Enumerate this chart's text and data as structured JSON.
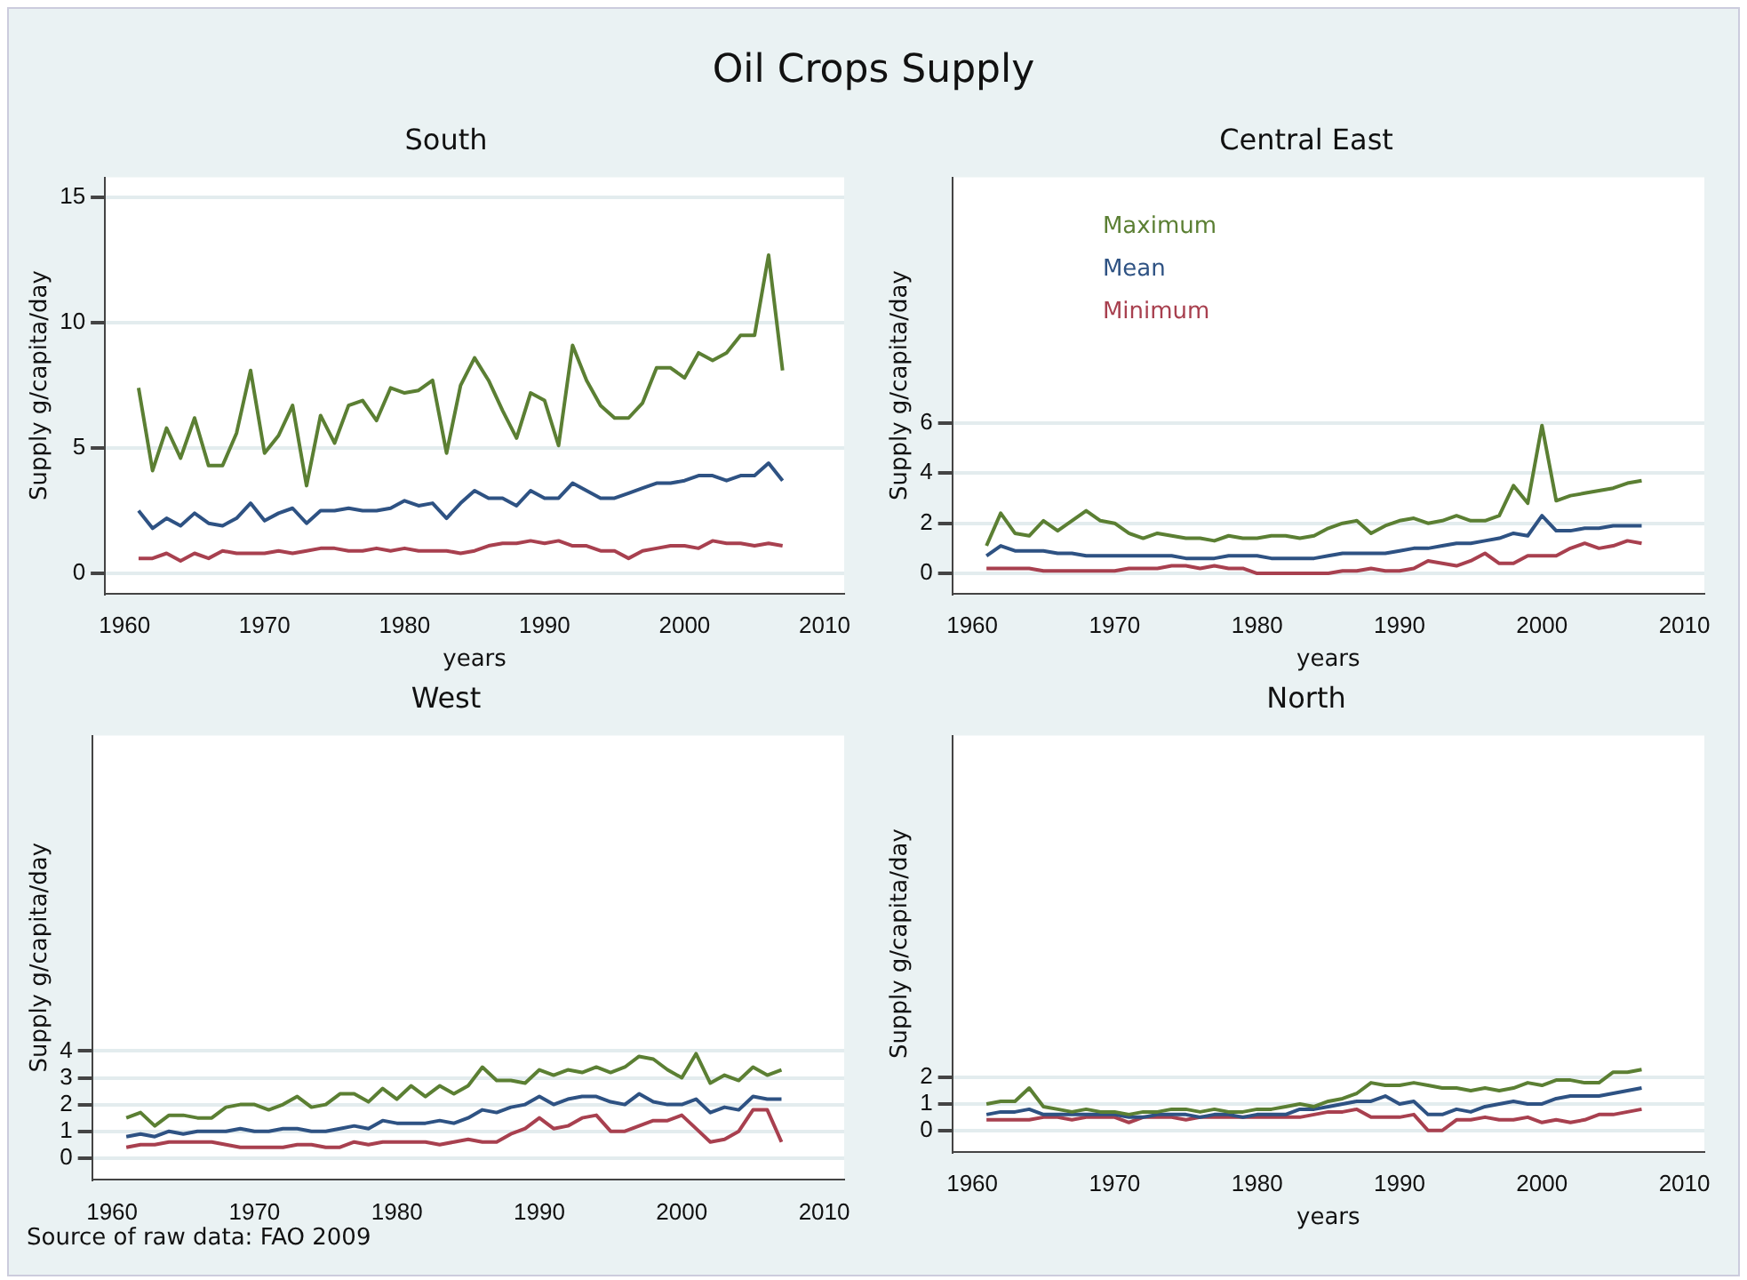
{
  "chart_data": [
    {
      "type": "line",
      "title": "South",
      "annotations": [
        "Oil Crops Supply"
      ],
      "xlabel": "years",
      "ylabel": "Supply g/capita/day",
      "x": [
        1961,
        1962,
        1963,
        1964,
        1965,
        1966,
        1967,
        1968,
        1969,
        1970,
        1971,
        1972,
        1973,
        1974,
        1975,
        1976,
        1977,
        1978,
        1979,
        1980,
        1981,
        1982,
        1983,
        1984,
        1985,
        1986,
        1987,
        1988,
        1989,
        1990,
        1991,
        1992,
        1993,
        1994,
        1995,
        1996,
        1997,
        1998,
        1999,
        2000,
        2001,
        2002,
        2003,
        2004,
        2005,
        2006,
        2007
      ],
      "xlim": [
        1958.6,
        2011.4
      ],
      "xticks": [
        1960,
        1970,
        1980,
        1990,
        2000,
        2010
      ],
      "ylim": [
        -0.8,
        15.8
      ],
      "yticks": [
        0,
        5,
        10,
        15
      ],
      "grid": "y",
      "legend": false,
      "marker": "none",
      "line_style": "solid",
      "series": [
        {
          "color": "#5b7f33",
          "values": [
            7.4,
            4.1,
            5.8,
            4.6,
            6.2,
            4.3,
            4.3,
            5.6,
            8.1,
            4.8,
            5.5,
            6.7,
            3.5,
            6.3,
            5.2,
            6.7,
            6.9,
            6.1,
            7.4,
            7.2,
            7.3,
            7.7,
            4.8,
            7.5,
            8.6,
            7.7,
            6.5,
            5.4,
            7.2,
            6.9,
            5.1,
            9.1,
            7.7,
            6.7,
            6.2,
            6.2,
            6.8,
            8.2,
            8.2,
            7.8,
            8.8,
            8.5,
            8.8,
            9.5,
            9.5,
            12.7,
            8.1
          ]
        },
        {
          "color": "#2e5283",
          "values": [
            2.5,
            1.8,
            2.2,
            1.9,
            2.4,
            2.0,
            1.9,
            2.2,
            2.8,
            2.1,
            2.4,
            2.6,
            2.0,
            2.5,
            2.5,
            2.6,
            2.5,
            2.5,
            2.6,
            2.9,
            2.7,
            2.8,
            2.2,
            2.8,
            3.3,
            3.0,
            3.0,
            2.7,
            3.3,
            3.0,
            3.0,
            3.6,
            3.3,
            3.0,
            3.0,
            3.2,
            3.4,
            3.6,
            3.6,
            3.7,
            3.9,
            3.9,
            3.7,
            3.9,
            3.9,
            4.4,
            3.7
          ]
        },
        {
          "color": "#a8404f",
          "values": [
            0.6,
            0.6,
            0.8,
            0.5,
            0.8,
            0.6,
            0.9,
            0.8,
            0.8,
            0.8,
            0.9,
            0.8,
            0.9,
            1.0,
            1.0,
            0.9,
            0.9,
            1.0,
            0.9,
            1.0,
            0.9,
            0.9,
            0.9,
            0.8,
            0.9,
            1.1,
            1.2,
            1.2,
            1.3,
            1.2,
            1.3,
            1.1,
            1.1,
            0.9,
            0.9,
            0.6,
            0.9,
            1.0,
            1.1,
            1.1,
            1.0,
            1.3,
            1.2,
            1.2,
            1.1,
            1.2,
            1.1
          ]
        }
      ]
    },
    {
      "type": "line",
      "title": "Central East",
      "xlabel": "years",
      "ylabel": "Supply g/capita/day",
      "x": [
        1961,
        1962,
        1963,
        1964,
        1965,
        1966,
        1967,
        1968,
        1969,
        1970,
        1971,
        1972,
        1973,
        1974,
        1975,
        1976,
        1977,
        1978,
        1979,
        1980,
        1981,
        1982,
        1983,
        1984,
        1985,
        1986,
        1987,
        1988,
        1989,
        1990,
        1991,
        1992,
        1993,
        1994,
        1995,
        1996,
        1997,
        1998,
        1999,
        2000,
        2001,
        2002,
        2003,
        2004,
        2005,
        2006,
        2007
      ],
      "xlim": [
        1958.6,
        2011.4
      ],
      "xticks": [
        1960,
        1970,
        1980,
        1990,
        2000,
        2010
      ],
      "ylim": [
        -0.8,
        15.8
      ],
      "yticks": [
        0,
        2,
        4,
        6
      ],
      "grid": "y",
      "legend": "top left",
      "marker": "none",
      "line_style": "solid",
      "series": [
        {
          "name": "Maximum",
          "color": "#5b7f33",
          "values": [
            1.1,
            2.4,
            1.6,
            1.5,
            2.1,
            1.7,
            2.1,
            2.5,
            2.1,
            2.0,
            1.6,
            1.4,
            1.6,
            1.5,
            1.4,
            1.4,
            1.3,
            1.5,
            1.4,
            1.4,
            1.5,
            1.5,
            1.4,
            1.5,
            1.8,
            2.0,
            2.1,
            1.6,
            1.9,
            2.1,
            2.2,
            2.0,
            2.1,
            2.3,
            2.1,
            2.1,
            2.3,
            3.5,
            2.8,
            5.9,
            2.9,
            3.1,
            3.2,
            3.3,
            3.4,
            3.6,
            3.7
          ]
        },
        {
          "name": "Mean",
          "color": "#2e5283",
          "values": [
            0.7,
            1.1,
            0.9,
            0.9,
            0.9,
            0.8,
            0.8,
            0.7,
            0.7,
            0.7,
            0.7,
            0.7,
            0.7,
            0.7,
            0.6,
            0.6,
            0.6,
            0.7,
            0.7,
            0.7,
            0.6,
            0.6,
            0.6,
            0.6,
            0.7,
            0.8,
            0.8,
            0.8,
            0.8,
            0.9,
            1.0,
            1.0,
            1.1,
            1.2,
            1.2,
            1.3,
            1.4,
            1.6,
            1.5,
            2.3,
            1.7,
            1.7,
            1.8,
            1.8,
            1.9,
            1.9,
            1.9
          ]
        },
        {
          "name": "Minimum",
          "color": "#a8404f",
          "values": [
            0.2,
            0.2,
            0.2,
            0.2,
            0.1,
            0.1,
            0.1,
            0.1,
            0.1,
            0.1,
            0.2,
            0.2,
            0.2,
            0.3,
            0.3,
            0.2,
            0.3,
            0.2,
            0.2,
            0.0,
            0.0,
            0.0,
            0.0,
            0.0,
            0.0,
            0.1,
            0.1,
            0.2,
            0.1,
            0.1,
            0.2,
            0.5,
            0.4,
            0.3,
            0.5,
            0.8,
            0.4,
            0.4,
            0.7,
            0.7,
            0.7,
            1.0,
            1.2,
            1.0,
            1.1,
            1.3,
            1.2
          ]
        }
      ]
    },
    {
      "type": "line",
      "title": "West",
      "annotations": [
        "Source of raw data: FAO 2009"
      ],
      "ylabel": "Supply g/capita/day",
      "x": [
        1961,
        1962,
        1963,
        1964,
        1965,
        1966,
        1967,
        1968,
        1969,
        1970,
        1971,
        1972,
        1973,
        1974,
        1975,
        1976,
        1977,
        1978,
        1979,
        1980,
        1981,
        1982,
        1983,
        1984,
        1985,
        1986,
        1987,
        1988,
        1989,
        1990,
        1991,
        1992,
        1993,
        1994,
        1995,
        1996,
        1997,
        1998,
        1999,
        2000,
        2001,
        2002,
        2003,
        2004,
        2005,
        2006,
        2007
      ],
      "xlim": [
        1958.6,
        2011.4
      ],
      "xticks": [
        1960,
        1970,
        1980,
        1990,
        2000,
        2010
      ],
      "ylim": [
        -0.8,
        15.8
      ],
      "yticks": [
        0,
        1,
        2,
        3,
        4
      ],
      "grid": "y",
      "legend": false,
      "marker": "none",
      "line_style": "solid",
      "series": [
        {
          "color": "#5b7f33",
          "values": [
            1.5,
            1.7,
            1.2,
            1.6,
            1.6,
            1.5,
            1.5,
            1.9,
            2.0,
            2.0,
            1.8,
            2.0,
            2.3,
            1.9,
            2.0,
            2.4,
            2.4,
            2.1,
            2.6,
            2.2,
            2.7,
            2.3,
            2.7,
            2.4,
            2.7,
            3.4,
            2.9,
            2.9,
            2.8,
            3.3,
            3.1,
            3.3,
            3.2,
            3.4,
            3.2,
            3.4,
            3.8,
            3.7,
            3.3,
            3.0,
            3.9,
            2.8,
            3.1,
            2.9,
            3.4,
            3.1,
            3.3
          ]
        },
        {
          "color": "#2e5283",
          "values": [
            0.8,
            0.9,
            0.8,
            1.0,
            0.9,
            1.0,
            1.0,
            1.0,
            1.1,
            1.0,
            1.0,
            1.1,
            1.1,
            1.0,
            1.0,
            1.1,
            1.2,
            1.1,
            1.4,
            1.3,
            1.3,
            1.3,
            1.4,
            1.3,
            1.5,
            1.8,
            1.7,
            1.9,
            2.0,
            2.3,
            2.0,
            2.2,
            2.3,
            2.3,
            2.1,
            2.0,
            2.4,
            2.1,
            2.0,
            2.0,
            2.2,
            1.7,
            1.9,
            1.8,
            2.3,
            2.2,
            2.2
          ]
        },
        {
          "color": "#a8404f",
          "values": [
            0.4,
            0.5,
            0.5,
            0.6,
            0.6,
            0.6,
            0.6,
            0.5,
            0.4,
            0.4,
            0.4,
            0.4,
            0.5,
            0.5,
            0.4,
            0.4,
            0.6,
            0.5,
            0.6,
            0.6,
            0.6,
            0.6,
            0.5,
            0.6,
            0.7,
            0.6,
            0.6,
            0.9,
            1.1,
            1.5,
            1.1,
            1.2,
            1.5,
            1.6,
            1.0,
            1.0,
            1.2,
            1.4,
            1.4,
            1.6,
            1.1,
            0.6,
            0.7,
            1.0,
            1.8,
            1.8,
            0.6
          ]
        }
      ]
    },
    {
      "type": "line",
      "title": "North",
      "xlabel": "years",
      "ylabel": "Supply g/capita/day",
      "x": [
        1961,
        1962,
        1963,
        1964,
        1965,
        1966,
        1967,
        1968,
        1969,
        1970,
        1971,
        1972,
        1973,
        1974,
        1975,
        1976,
        1977,
        1978,
        1979,
        1980,
        1981,
        1982,
        1983,
        1984,
        1985,
        1986,
        1987,
        1988,
        1989,
        1990,
        1991,
        1992,
        1993,
        1994,
        1995,
        1996,
        1997,
        1998,
        1999,
        2000,
        2001,
        2002,
        2003,
        2004,
        2005,
        2006,
        2007
      ],
      "xlim": [
        1958.6,
        2011.4
      ],
      "xticks": [
        1960,
        1970,
        1980,
        1990,
        2000,
        2010
      ],
      "ylim": [
        -0.8,
        14.9
      ],
      "yticks": [
        0,
        1,
        2
      ],
      "grid": "y",
      "legend": false,
      "marker": "none",
      "line_style": "solid",
      "series": [
        {
          "color": "#5b7f33",
          "values": [
            1.0,
            1.1,
            1.1,
            1.6,
            0.9,
            0.8,
            0.7,
            0.8,
            0.7,
            0.7,
            0.6,
            0.7,
            0.7,
            0.8,
            0.8,
            0.7,
            0.8,
            0.7,
            0.7,
            0.8,
            0.8,
            0.9,
            1.0,
            0.9,
            1.1,
            1.2,
            1.4,
            1.8,
            1.7,
            1.7,
            1.8,
            1.7,
            1.6,
            1.6,
            1.5,
            1.6,
            1.5,
            1.6,
            1.8,
            1.7,
            1.9,
            1.9,
            1.8,
            1.8,
            2.2,
            2.2,
            2.3
          ]
        },
        {
          "color": "#2e5283",
          "values": [
            0.6,
            0.7,
            0.7,
            0.8,
            0.6,
            0.6,
            0.6,
            0.6,
            0.6,
            0.6,
            0.5,
            0.5,
            0.6,
            0.6,
            0.6,
            0.5,
            0.6,
            0.6,
            0.5,
            0.6,
            0.6,
            0.6,
            0.8,
            0.8,
            0.9,
            1.0,
            1.1,
            1.1,
            1.3,
            1.0,
            1.1,
            0.6,
            0.6,
            0.8,
            0.7,
            0.9,
            1.0,
            1.1,
            1.0,
            1.0,
            1.2,
            1.3,
            1.3,
            1.3,
            1.4,
            1.5,
            1.6
          ]
        },
        {
          "color": "#a8404f",
          "values": [
            0.4,
            0.4,
            0.4,
            0.4,
            0.5,
            0.5,
            0.4,
            0.5,
            0.5,
            0.5,
            0.3,
            0.5,
            0.5,
            0.5,
            0.4,
            0.5,
            0.5,
            0.5,
            0.5,
            0.5,
            0.5,
            0.5,
            0.5,
            0.6,
            0.7,
            0.7,
            0.8,
            0.5,
            0.5,
            0.5,
            0.6,
            0.0,
            0.0,
            0.4,
            0.4,
            0.5,
            0.4,
            0.4,
            0.5,
            0.3,
            0.4,
            0.3,
            0.4,
            0.6,
            0.6,
            0.7,
            0.8
          ]
        }
      ]
    }
  ]
}
